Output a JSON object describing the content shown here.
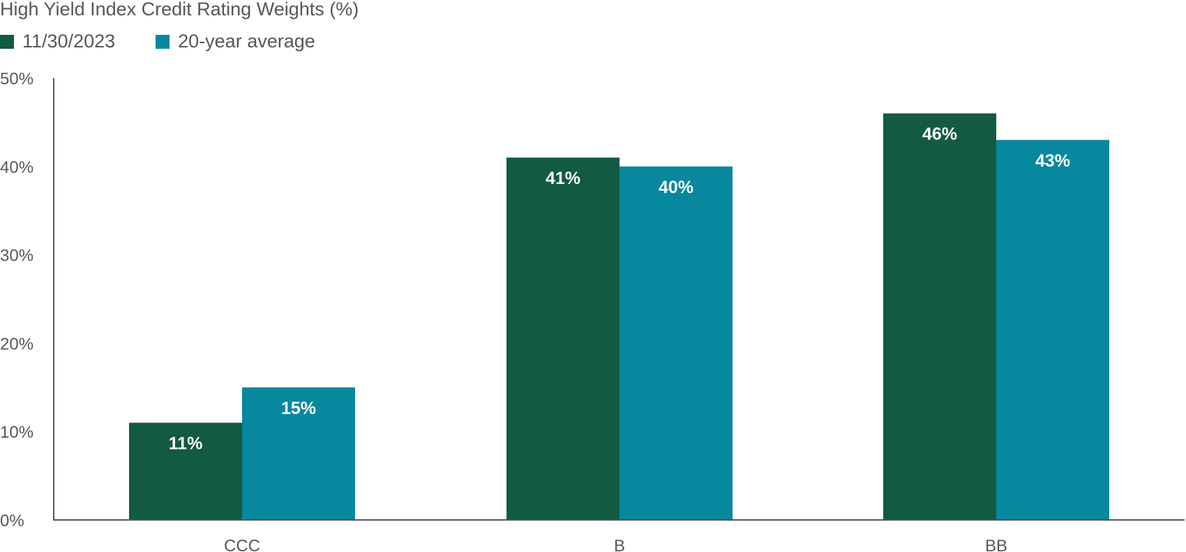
{
  "colors": {
    "series_1": "#125a42",
    "series_2": "#08889e",
    "axis": "#55575b",
    "text": "#55575b",
    "data_label": "#ffffff"
  },
  "chart_data": {
    "type": "bar",
    "title": "High Yield Index Credit Rating Weights (%)",
    "categories": [
      "CCC",
      "B",
      "BB"
    ],
    "series": [
      {
        "name": "11/30/2023",
        "values": [
          11,
          41,
          46
        ],
        "labels": [
          "11%",
          "41%",
          "46%"
        ]
      },
      {
        "name": "20-year average",
        "values": [
          15,
          40,
          43
        ],
        "labels": [
          "15%",
          "40%",
          "43%"
        ]
      }
    ],
    "ylim": [
      0,
      50
    ],
    "yticks": [
      0,
      10,
      20,
      30,
      40,
      50
    ],
    "ytick_labels": [
      "0%",
      "10%",
      "20%",
      "30%",
      "40%",
      "50%"
    ],
    "grid": false,
    "legend": "top-left",
    "xlabel": "",
    "ylabel": ""
  }
}
